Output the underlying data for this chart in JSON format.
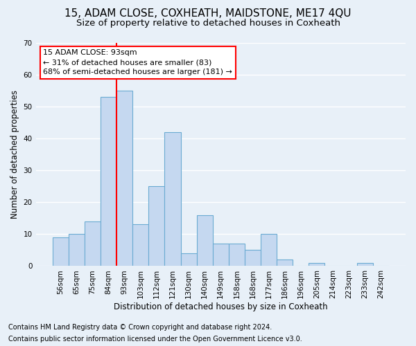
{
  "title": "15, ADAM CLOSE, COXHEATH, MAIDSTONE, ME17 4QU",
  "subtitle": "Size of property relative to detached houses in Coxheath",
  "xlabel": "Distribution of detached houses by size in Coxheath",
  "ylabel": "Number of detached properties",
  "bar_labels": [
    "56sqm",
    "65sqm",
    "75sqm",
    "84sqm",
    "93sqm",
    "103sqm",
    "112sqm",
    "121sqm",
    "130sqm",
    "140sqm",
    "149sqm",
    "158sqm",
    "168sqm",
    "177sqm",
    "186sqm",
    "196sqm",
    "205sqm",
    "214sqm",
    "223sqm",
    "233sqm",
    "242sqm"
  ],
  "bar_values": [
    9,
    10,
    14,
    53,
    55,
    13,
    25,
    42,
    4,
    16,
    7,
    7,
    5,
    10,
    2,
    0,
    1,
    0,
    0,
    1,
    0
  ],
  "bar_color": "#c5d8f0",
  "bar_edge_color": "#6aabd2",
  "bg_color": "#e8f0f8",
  "grid_color": "#ffffff",
  "annotation_line1": "15 ADAM CLOSE: 93sqm",
  "annotation_line2": "← 31% of detached houses are smaller (83)",
  "annotation_line3": "68% of semi-detached houses are larger (181) →",
  "redline_bar_index": 4,
  "ylim": [
    0,
    70
  ],
  "yticks": [
    0,
    10,
    20,
    30,
    40,
    50,
    60,
    70
  ],
  "footnote1": "Contains HM Land Registry data © Crown copyright and database right 2024.",
  "footnote2": "Contains public sector information licensed under the Open Government Licence v3.0.",
  "title_fontsize": 11,
  "subtitle_fontsize": 9.5,
  "label_fontsize": 8.5,
  "tick_fontsize": 7.5,
  "annot_fontsize": 8,
  "footnote_fontsize": 7
}
